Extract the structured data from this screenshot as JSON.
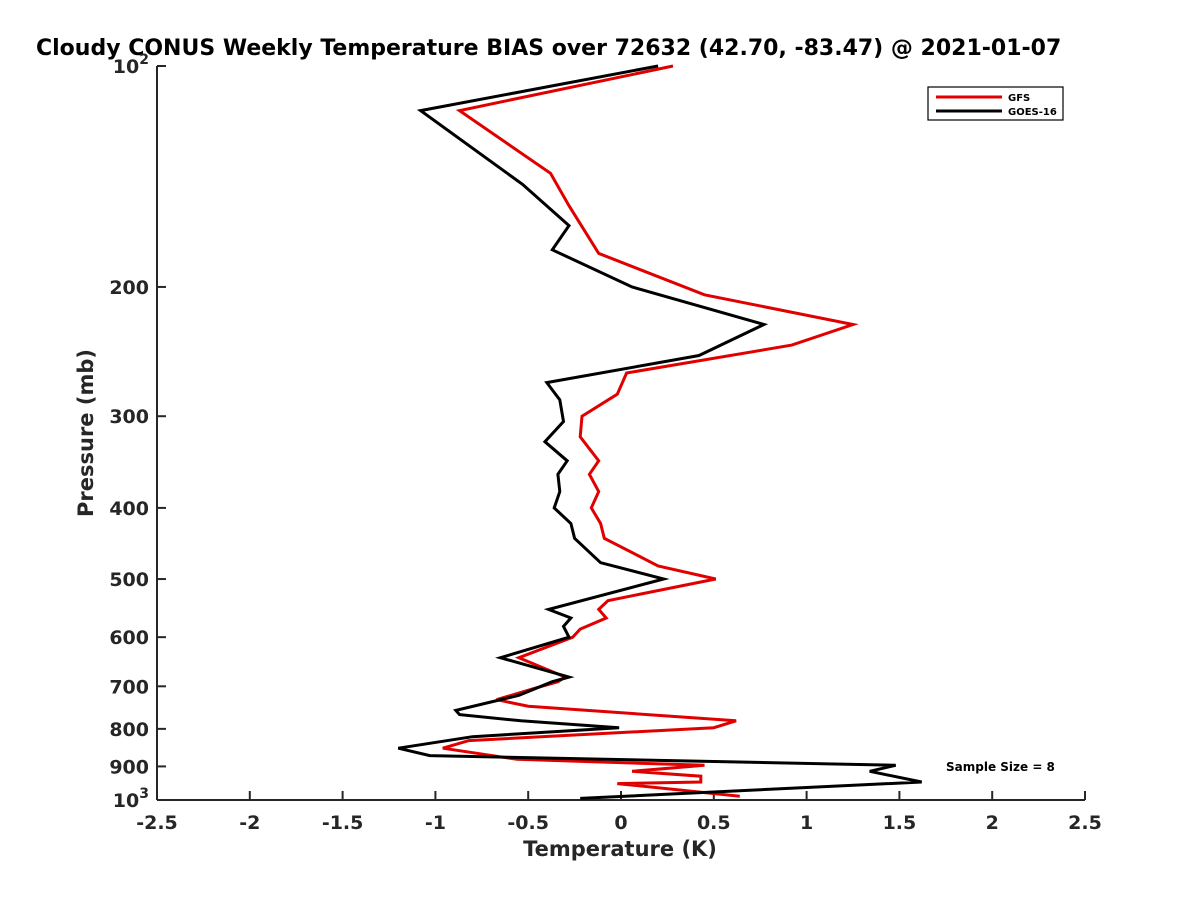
{
  "chart_data": {
    "type": "line",
    "title": "Cloudy CONUS Weekly Temperature BIAS over 72632 (42.70, -83.47) @ 2021-01-07",
    "xlabel": "Temperature (K)",
    "ylabel": "Pressure (mb)",
    "xlim": [
      -2.5,
      2.5
    ],
    "ylim": [
      1000,
      100
    ],
    "yscale": "log",
    "y_reversed": true,
    "x_ticks": [
      "-2.5",
      "-2",
      "-1.5",
      "-1",
      "-0.5",
      "0",
      "0.5",
      "1",
      "1.5",
      "2",
      "2.5"
    ],
    "y_ticks": [
      {
        "value": 100,
        "label": "10",
        "sup": "2"
      },
      {
        "value": 200,
        "label": "200"
      },
      {
        "value": 300,
        "label": "300"
      },
      {
        "value": 400,
        "label": "400"
      },
      {
        "value": 500,
        "label": "500"
      },
      {
        "value": 600,
        "label": "600"
      },
      {
        "value": 700,
        "label": "700"
      },
      {
        "value": 800,
        "label": "800"
      },
      {
        "value": 900,
        "label": "900"
      },
      {
        "value": 1000,
        "label": "10",
        "sup": "3"
      }
    ],
    "grid": false,
    "legend_position": "top-right",
    "series": [
      {
        "name": "GFS",
        "color": "#e00000",
        "points": [
          [
            0.28,
            100
          ],
          [
            -0.87,
            115
          ],
          [
            -0.38,
            140
          ],
          [
            -0.28,
            155
          ],
          [
            -0.12,
            180
          ],
          [
            0.45,
            205
          ],
          [
            1.25,
            225
          ],
          [
            0.92,
            240
          ],
          [
            0.03,
            262
          ],
          [
            -0.02,
            280
          ],
          [
            -0.21,
            300
          ],
          [
            -0.22,
            320
          ],
          [
            -0.12,
            345
          ],
          [
            -0.17,
            360
          ],
          [
            -0.12,
            380
          ],
          [
            -0.16,
            400
          ],
          [
            -0.11,
            420
          ],
          [
            -0.09,
            440
          ],
          [
            0.2,
            480
          ],
          [
            0.51,
            500
          ],
          [
            -0.07,
            535
          ],
          [
            -0.12,
            550
          ],
          [
            -0.08,
            565
          ],
          [
            -0.22,
            585
          ],
          [
            -0.26,
            600
          ],
          [
            -0.55,
            640
          ],
          [
            -0.3,
            680
          ],
          [
            -0.34,
            690
          ],
          [
            -0.47,
            705
          ],
          [
            -0.67,
            730
          ],
          [
            -0.5,
            745
          ],
          [
            0.62,
            780
          ],
          [
            0.5,
            797
          ],
          [
            -0.82,
            830
          ],
          [
            -0.96,
            850
          ],
          [
            -0.56,
            880
          ],
          [
            0.45,
            897
          ],
          [
            0.06,
            914
          ],
          [
            0.43,
            928
          ],
          [
            0.43,
            945
          ],
          [
            -0.02,
            950
          ],
          [
            0.64,
            988
          ]
        ]
      },
      {
        "name": "GOES-16",
        "color": "#000000",
        "points": [
          [
            0.2,
            100
          ],
          [
            -1.08,
            115
          ],
          [
            -0.53,
            145
          ],
          [
            -0.28,
            165
          ],
          [
            -0.37,
            178
          ],
          [
            0.06,
            200
          ],
          [
            0.77,
            225
          ],
          [
            0.42,
            248
          ],
          [
            -0.4,
            270
          ],
          [
            -0.33,
            285
          ],
          [
            -0.31,
            305
          ],
          [
            -0.41,
            325
          ],
          [
            -0.29,
            345
          ],
          [
            -0.34,
            360
          ],
          [
            -0.33,
            380
          ],
          [
            -0.36,
            400
          ],
          [
            -0.27,
            420
          ],
          [
            -0.25,
            440
          ],
          [
            -0.11,
            475
          ],
          [
            0.23,
            500
          ],
          [
            -0.39,
            550
          ],
          [
            -0.27,
            565
          ],
          [
            -0.31,
            580
          ],
          [
            -0.28,
            600
          ],
          [
            -0.65,
            640
          ],
          [
            -0.28,
            680
          ],
          [
            -0.37,
            690
          ],
          [
            -0.55,
            720
          ],
          [
            -0.89,
            755
          ],
          [
            -0.87,
            765
          ],
          [
            -0.54,
            780
          ],
          [
            -0.01,
            797
          ],
          [
            -0.8,
            820
          ],
          [
            -1.2,
            850
          ],
          [
            -1.03,
            870
          ],
          [
            1.48,
            897
          ],
          [
            1.34,
            914
          ],
          [
            1.62,
            945
          ],
          [
            -0.22,
            995
          ]
        ]
      }
    ],
    "annotation": "Sample Size = 8"
  }
}
